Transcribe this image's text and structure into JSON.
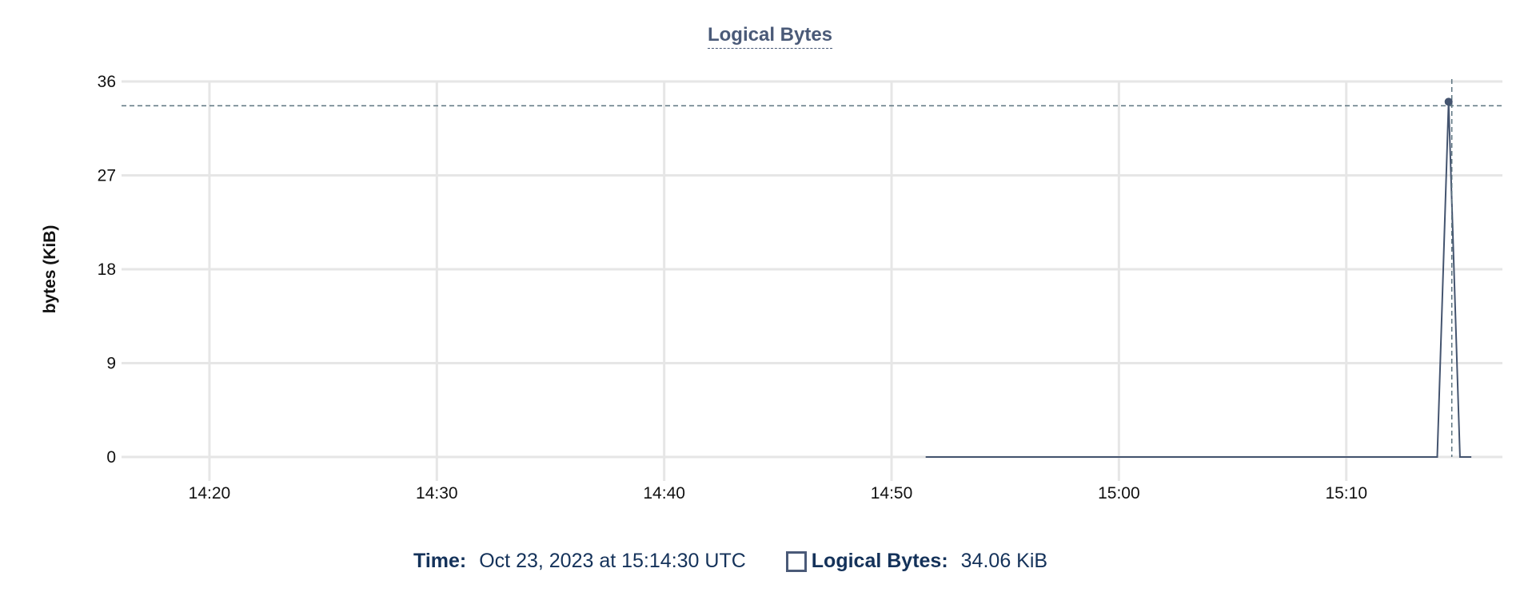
{
  "chart_data": {
    "type": "line",
    "title": "Logical Bytes",
    "ylabel": "bytes (KiB)",
    "xlabel": "",
    "ylim": [
      0,
      36
    ],
    "yticks": [
      "0",
      "9",
      "18",
      "27",
      "36"
    ],
    "xlim": [
      "14:16:08",
      "15:16:52"
    ],
    "xticks": [
      "14:20",
      "14:30",
      "14:40",
      "14:50",
      "15:00",
      "15:10"
    ],
    "grid": true,
    "series": [
      {
        "name": "Logical Bytes",
        "color": "#44546f",
        "points": [
          {
            "x": "14:51:30",
            "y": 0
          },
          {
            "x": "15:14:00",
            "y": 0
          },
          {
            "x": "15:14:30",
            "y": 34.06
          },
          {
            "x": "15:15:00",
            "y": 0
          },
          {
            "x": "15:15:30",
            "y": 0
          }
        ]
      }
    ],
    "crosshair": {
      "x": "15:14:30",
      "y": 34.06
    }
  },
  "tooltip": {
    "time_label": "Time:",
    "time_value": "Oct 23, 2023 at 15:14:30 UTC",
    "series_label": "Logical Bytes:",
    "series_value": "34.06 KiB"
  }
}
